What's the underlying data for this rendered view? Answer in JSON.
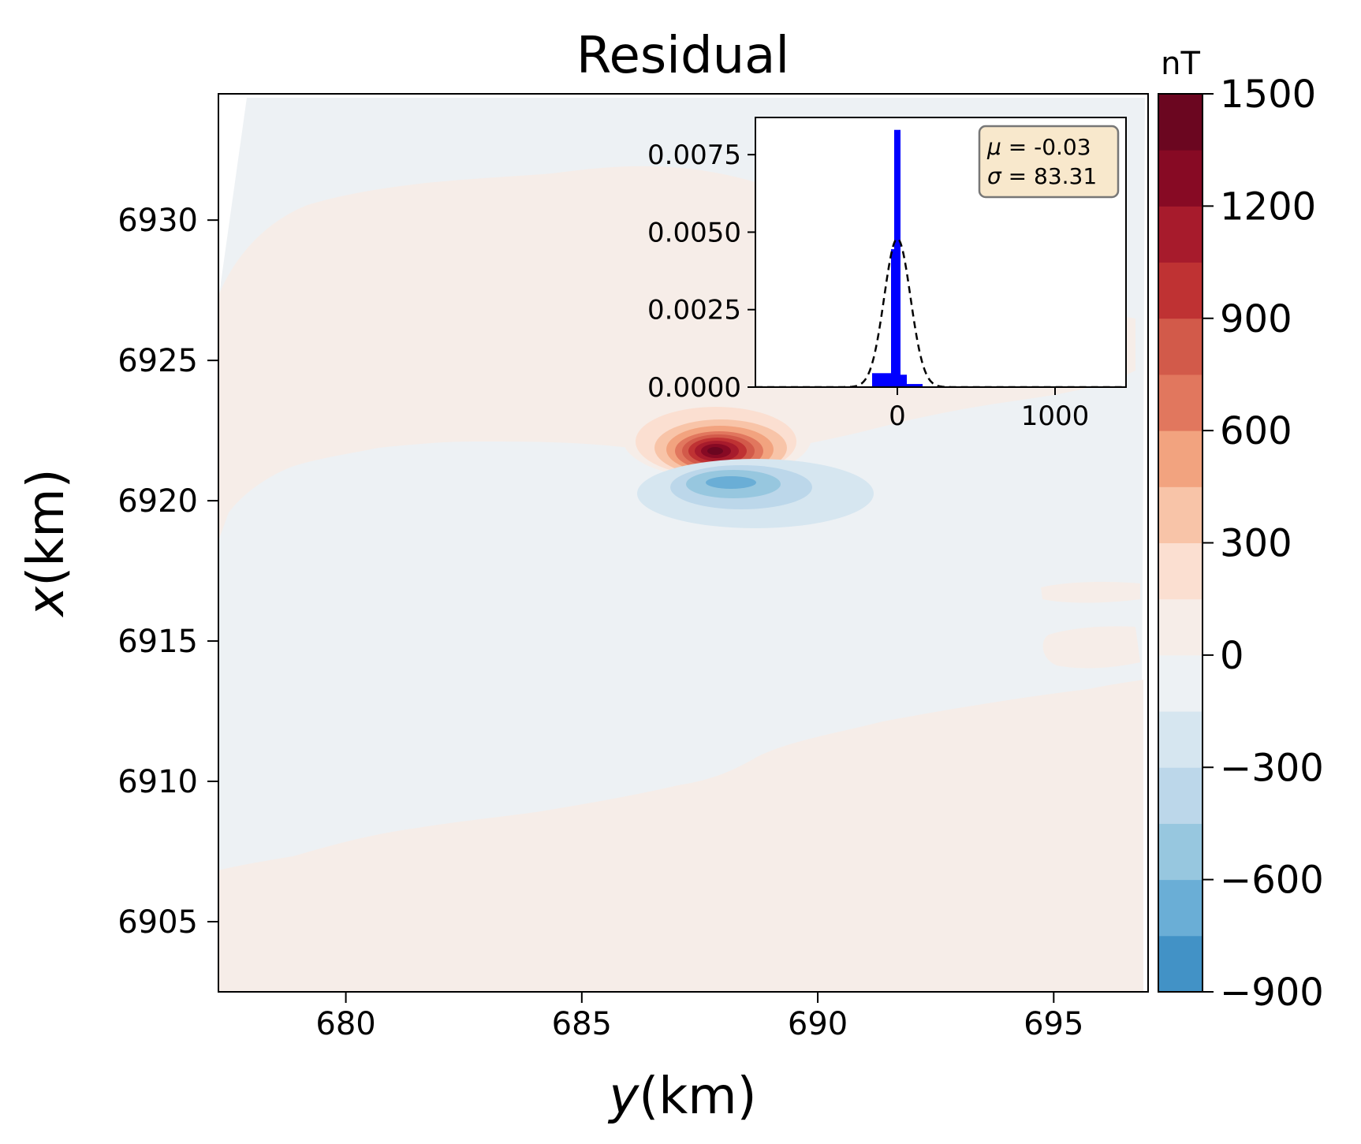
{
  "chart_data": [
    {
      "type": "heatmap",
      "title": "Residual",
      "xlabel_var": "y",
      "xlabel_unit": "(km)",
      "ylabel_var": "x",
      "ylabel_unit": "(km)",
      "xlim": [
        677.3,
        697.0
      ],
      "ylim": [
        6902.5,
        6934.5
      ],
      "xticks": [
        680,
        685,
        690,
        695
      ],
      "yticks": [
        6905,
        6910,
        6915,
        6920,
        6925,
        6930
      ],
      "grid": false,
      "background_colors": {
        "near_zero_positive": "#f6ede8",
        "near_zero_negative": "#edf1f4"
      },
      "anomaly_regions": [
        {
          "name": "positive-anomaly",
          "center": [
            687.8,
            6921.8
          ],
          "peak_value": 1500
        },
        {
          "name": "negative-anomaly",
          "center": [
            688.1,
            6920.7
          ],
          "peak_value": -900
        }
      ],
      "colorbar": {
        "label": "nT",
        "ticks": [
          1500,
          1200,
          900,
          600,
          300,
          0,
          -300,
          -600,
          -900
        ],
        "tick_labels": [
          "1500",
          "1200",
          "900",
          "600",
          "300",
          "0",
          "−300",
          "−600",
          "−900"
        ],
        "range": [
          -900,
          1500
        ],
        "levels": [
          -900,
          -750,
          -600,
          -450,
          -300,
          -150,
          0,
          150,
          300,
          450,
          600,
          750,
          900,
          1050,
          1200,
          1350,
          1500
        ],
        "colors": [
          "#4292c6",
          "#6aaed6",
          "#97c7df",
          "#bcd7ea",
          "#d6e6f0",
          "#edf1f4",
          "#f6ede8",
          "#fbdfd1",
          "#f8c4a8",
          "#f2a37f",
          "#e1775e",
          "#d25a4a",
          "#bf3233",
          "#a71b2c",
          "#870a24",
          "#6b0620"
        ]
      }
    },
    {
      "type": "bar",
      "subtype": "histogram-inset",
      "xticks": [
        0,
        1000
      ],
      "xtick_labels": [
        "0",
        "1000"
      ],
      "yticks": [
        0.0,
        0.0025,
        0.005,
        0.0075
      ],
      "ytick_labels": [
        "0.0000",
        "0.0025",
        "0.0050",
        "0.0075"
      ],
      "xlim": [
        -900,
        1450
      ],
      "ylim": [
        0,
        0.0087
      ],
      "bin_edges": [
        -160,
        -80,
        -40,
        -20,
        20,
        60,
        160
      ],
      "values": [
        0.00045,
        0.00045,
        0.00445,
        0.0083,
        0.0004,
        0.0001
      ],
      "bar_color": "#0000ff",
      "normal_fit": {
        "mean": -0.03,
        "std": 83.31,
        "style": "dashed"
      },
      "stats_box": {
        "mu_symbol": "μ",
        "mu_text": " = -0.03",
        "sigma_symbol": "σ",
        "sigma_text": " = 83.31",
        "background": "#f8e8cc",
        "border": "#777777"
      }
    }
  ]
}
